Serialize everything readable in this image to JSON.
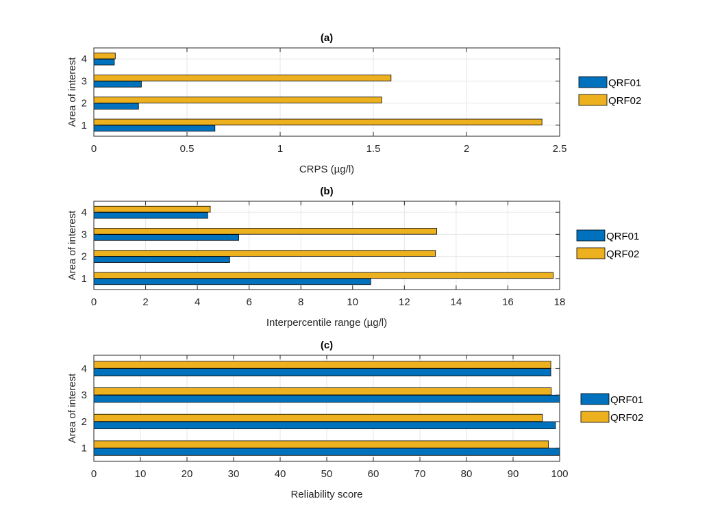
{
  "chart_data": [
    {
      "type": "bar",
      "orientation": "horizontal",
      "title": "(a)",
      "xlabel": "CRPS (µg/l)",
      "ylabel": "Area of interest",
      "categories": [
        "1",
        "2",
        "3",
        "4"
      ],
      "xlim": [
        0,
        2.5
      ],
      "xticks": [
        "0",
        "0.5",
        "1",
        "1.5",
        "2",
        "2.5"
      ],
      "grid": true,
      "legend_placement": "right",
      "series": [
        {
          "name": "QRF01",
          "color": "#0072BD",
          "values": [
            0.65,
            0.24,
            0.255,
            0.11
          ]
        },
        {
          "name": "QRF02",
          "color": "#EDB120",
          "values": [
            2.405,
            1.545,
            1.595,
            0.115
          ]
        }
      ]
    },
    {
      "type": "bar",
      "orientation": "horizontal",
      "title": "(b)",
      "xlabel": "Interpercentile range (µg/l)",
      "ylabel": "Area of interest",
      "categories": [
        "1",
        "2",
        "3",
        "4"
      ],
      "xlim": [
        0,
        18
      ],
      "xticks": [
        "0",
        "2",
        "4",
        "6",
        "8",
        "10",
        "12",
        "14",
        "16",
        "18"
      ],
      "grid": true,
      "legend_placement": "right",
      "series": [
        {
          "name": "QRF01",
          "color": "#0072BD",
          "values": [
            10.7,
            5.25,
            5.6,
            4.4
          ]
        },
        {
          "name": "QRF02",
          "color": "#EDB120",
          "values": [
            17.75,
            13.2,
            13.25,
            4.5
          ]
        }
      ]
    },
    {
      "type": "bar",
      "orientation": "horizontal",
      "title": "(c)",
      "xlabel": "Reliability score",
      "ylabel": "Area of interest",
      "categories": [
        "1",
        "2",
        "3",
        "4"
      ],
      "xlim": [
        0,
        100
      ],
      "xticks": [
        "0",
        "10",
        "20",
        "30",
        "40",
        "50",
        "60",
        "70",
        "80",
        "90",
        "100"
      ],
      "grid": true,
      "legend_placement": "right",
      "series": [
        {
          "name": "QRF01",
          "color": "#0072BD",
          "values": [
            100,
            99.1,
            100,
            98.1
          ]
        },
        {
          "name": "QRF02",
          "color": "#EDB120",
          "values": [
            97.6,
            96.3,
            98.2,
            98.1
          ]
        }
      ]
    }
  ]
}
